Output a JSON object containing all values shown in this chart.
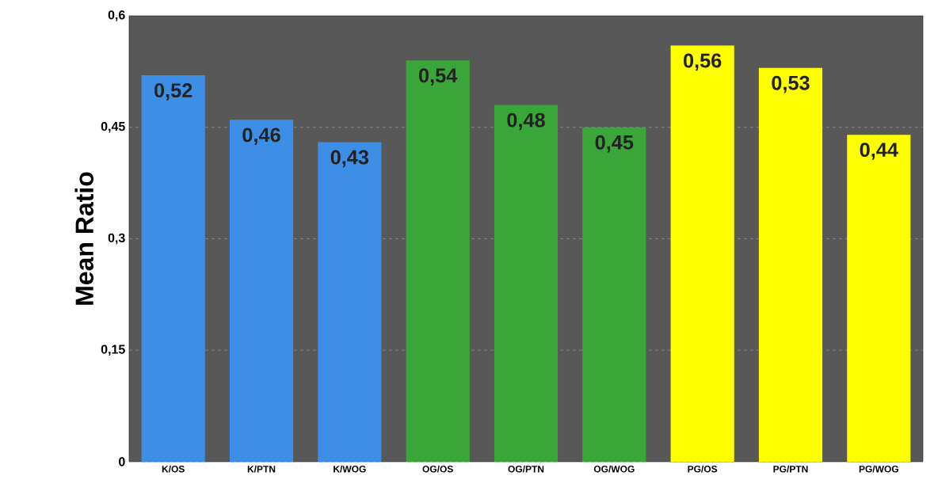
{
  "chart_data": {
    "type": "bar",
    "ylabel": "Mean Ratio",
    "categories": [
      "K/OS",
      "K/PTN",
      "K/WOG",
      "OG/OS",
      "OG/PTN",
      "OG/WOG",
      "PG/OS",
      "PG/PTN",
      "PG/WOG"
    ],
    "values": [
      0.52,
      0.46,
      0.43,
      0.54,
      0.48,
      0.45,
      0.56,
      0.53,
      0.44
    ],
    "value_labels": [
      "0,52",
      "0,46",
      "0,43",
      "0,54",
      "0,48",
      "0,45",
      "0,56",
      "0,53",
      "0,44"
    ],
    "colors": [
      "#3d8fe6",
      "#3d8fe6",
      "#3d8fe6",
      "#3aa63a",
      "#3aa63a",
      "#3aa63a",
      "#ffff00",
      "#ffff00",
      "#ffff00"
    ],
    "ylim": [
      0,
      0.6
    ],
    "yticks": [
      0,
      {
        "value": 0.15,
        "label": "0,15"
      },
      {
        "value": 0.3,
        "label": "0,3"
      },
      {
        "value": 0.45,
        "label": "0,45"
      },
      {
        "value": 0.6,
        "label": "0,6"
      }
    ],
    "grid": "y"
  }
}
